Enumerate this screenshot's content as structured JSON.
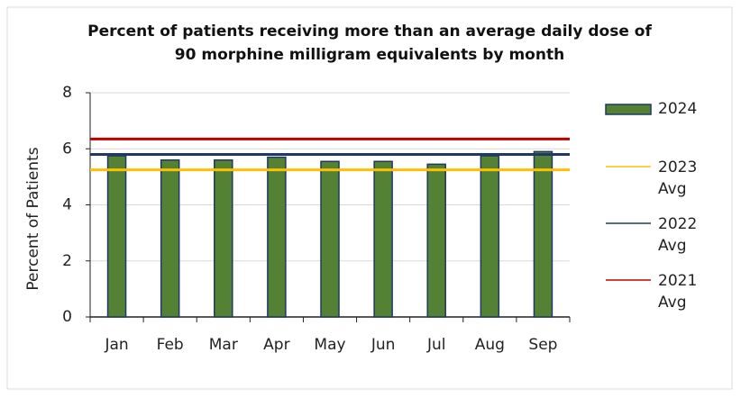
{
  "chart_data": {
    "type": "bar",
    "title": "Percent of patients receiving more than an average daily dose of 90 morphine milligram equivalents by month",
    "y_label": "Percent of Patients",
    "categories": [
      "Jan",
      "Feb",
      "Mar",
      "Apr",
      "May",
      "Jun",
      "Jul",
      "Aug",
      "Sep"
    ],
    "series": [
      {
        "name": "2024",
        "color": "#548235",
        "values": [
          5.75,
          5.6,
          5.6,
          5.7,
          5.55,
          5.55,
          5.45,
          5.75,
          5.9
        ]
      }
    ],
    "reference_lines": [
      {
        "name": "2023 Avg",
        "color": "#ffc000",
        "value": 5.25
      },
      {
        "name": "2022 Avg",
        "color": "#1f3864",
        "value": 5.8
      },
      {
        "name": "2021 Avg",
        "color": "#c00000",
        "value": 6.35
      }
    ],
    "ylim": [
      0,
      8
    ],
    "yticks": [
      0,
      2,
      4,
      6,
      8
    ],
    "grid": true
  }
}
